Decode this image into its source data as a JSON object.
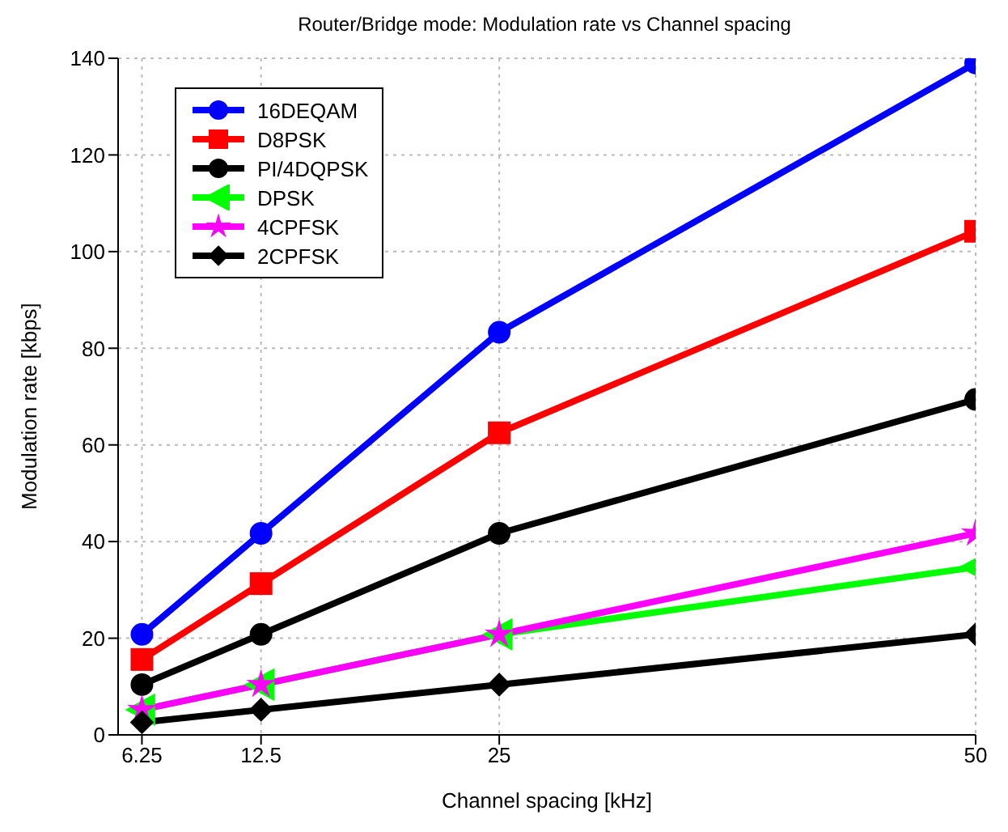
{
  "chart_data": {
    "type": "line",
    "title": "Router/Bridge mode: Modulation rate vs Channel spacing",
    "xlabel": "Channel spacing [kHz]",
    "ylabel": "Modulation rate [kbps]",
    "x": [
      6.25,
      12.5,
      25,
      50
    ],
    "series": [
      {
        "name": "16DEQAM",
        "color": "#0000ff",
        "marker": "circle",
        "values": [
          20.8,
          41.7,
          83.3,
          139
        ]
      },
      {
        "name": "D8PSK",
        "color": "#ff0000",
        "marker": "square",
        "values": [
          15.6,
          31.3,
          62.5,
          104.2
        ]
      },
      {
        "name": "PI/4DQPSK",
        "color": "#000000",
        "marker": "circle",
        "values": [
          10.4,
          20.8,
          41.7,
          69.4
        ]
      },
      {
        "name": "DPSK",
        "color": "#00ff00",
        "marker": "triangle",
        "values": [
          5.2,
          10.4,
          20.8,
          34.7
        ]
      },
      {
        "name": "4CPFSK",
        "color": "#ff00ff",
        "marker": "star",
        "values": [
          5.2,
          10.4,
          20.8,
          41.7
        ]
      },
      {
        "name": "2CPFSK",
        "color": "#000000",
        "marker": "diamond",
        "values": [
          2.6,
          5.2,
          10.4,
          20.8
        ]
      }
    ],
    "xlim": [
      5,
      50
    ],
    "xticks": [
      6.25,
      12.5,
      25,
      50
    ],
    "ylim": [
      0,
      140
    ],
    "yticks": [
      0,
      20,
      40,
      60,
      80,
      100,
      120,
      140
    ],
    "grid": true,
    "legend": "top left",
    "line_style": "solid"
  }
}
